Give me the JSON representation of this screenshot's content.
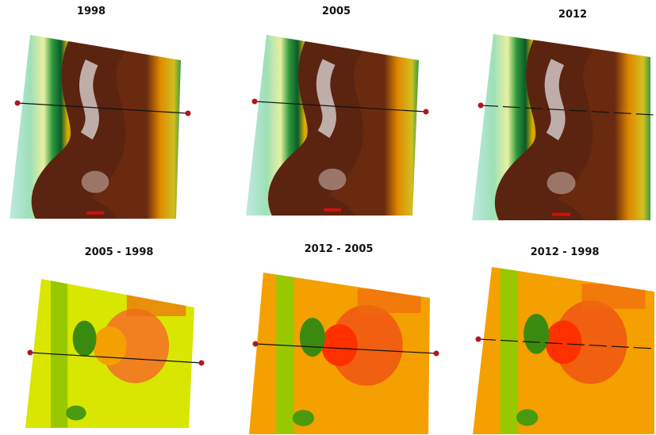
{
  "panels": [
    {
      "title": "1998"
    },
    {
      "title": "2005"
    },
    {
      "title": "2012"
    },
    {
      "title": "2005 - 1998"
    },
    {
      "title": "2012 - 2005"
    },
    {
      "title": "2012 - 1998"
    }
  ]
}
